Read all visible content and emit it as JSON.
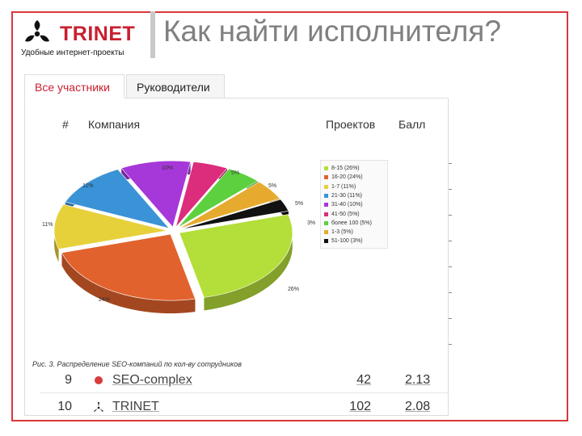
{
  "header": {
    "logo_text": "TRINET",
    "logo_subtitle": "Удобные интернет-проекты",
    "slide_title": "Как найти исполнителя?"
  },
  "tabs": [
    {
      "label": "Все участники",
      "active": true
    },
    {
      "label": "Руководители",
      "active": false
    }
  ],
  "table": {
    "columns": [
      "#",
      "Компания",
      "Проектов",
      "Балл"
    ],
    "rows": [
      {
        "num": "9",
        "company": "SEO-complex",
        "projects": "42",
        "score": "2.13"
      },
      {
        "num": "10",
        "company": "TRINET",
        "projects": "102",
        "score": "2.08"
      }
    ]
  },
  "chart_caption": "Рис. 3. Распределение SEO-компаний по кол-ву сотрудников",
  "chart_data": {
    "type": "pie",
    "title": "",
    "labels": [
      "8-15",
      "16-20",
      "1-7",
      "21-30",
      "31-40",
      "41-50",
      "более 100",
      "1-3",
      "51-100"
    ],
    "values": [
      26,
      24,
      11,
      11,
      10,
      5,
      5,
      5,
      3
    ],
    "slice_labels": [
      "26%",
      "24%",
      "11%",
      "11%",
      "10%",
      "5%",
      "5%",
      "5%",
      "3%"
    ],
    "legend": [
      "8-15 (26%)",
      "16-20 (24%)",
      "1-7 (11%)",
      "21-30 (11%)",
      "31-40 (10%)",
      "41-50 (5%)",
      "более 100 (5%)",
      "1-3 (5%)",
      "51-100 (3%)"
    ],
    "colors": [
      "#b4de3a",
      "#e2622d",
      "#e6d13a",
      "#3a93d6",
      "#a637d8",
      "#dc2c7c",
      "#5cd03e",
      "#e6ab2e",
      "#111111"
    ],
    "legend_position": "right"
  }
}
